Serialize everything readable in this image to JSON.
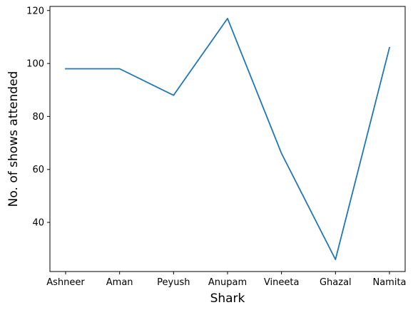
{
  "chart_data": {
    "type": "line",
    "categories": [
      "Ashneer",
      "Aman",
      "Peyush",
      "Anupam",
      "Vineeta",
      "Ghazal",
      "Namita"
    ],
    "values": [
      98,
      98,
      88,
      117,
      66,
      26,
      106
    ],
    "xlabel": "Shark",
    "ylabel": "No. of shows attended",
    "yticks": [
      40,
      60,
      80,
      100,
      120
    ],
    "ylim": [
      21.45,
      121.55
    ],
    "grid": false,
    "line_color": "#1f77b4"
  }
}
